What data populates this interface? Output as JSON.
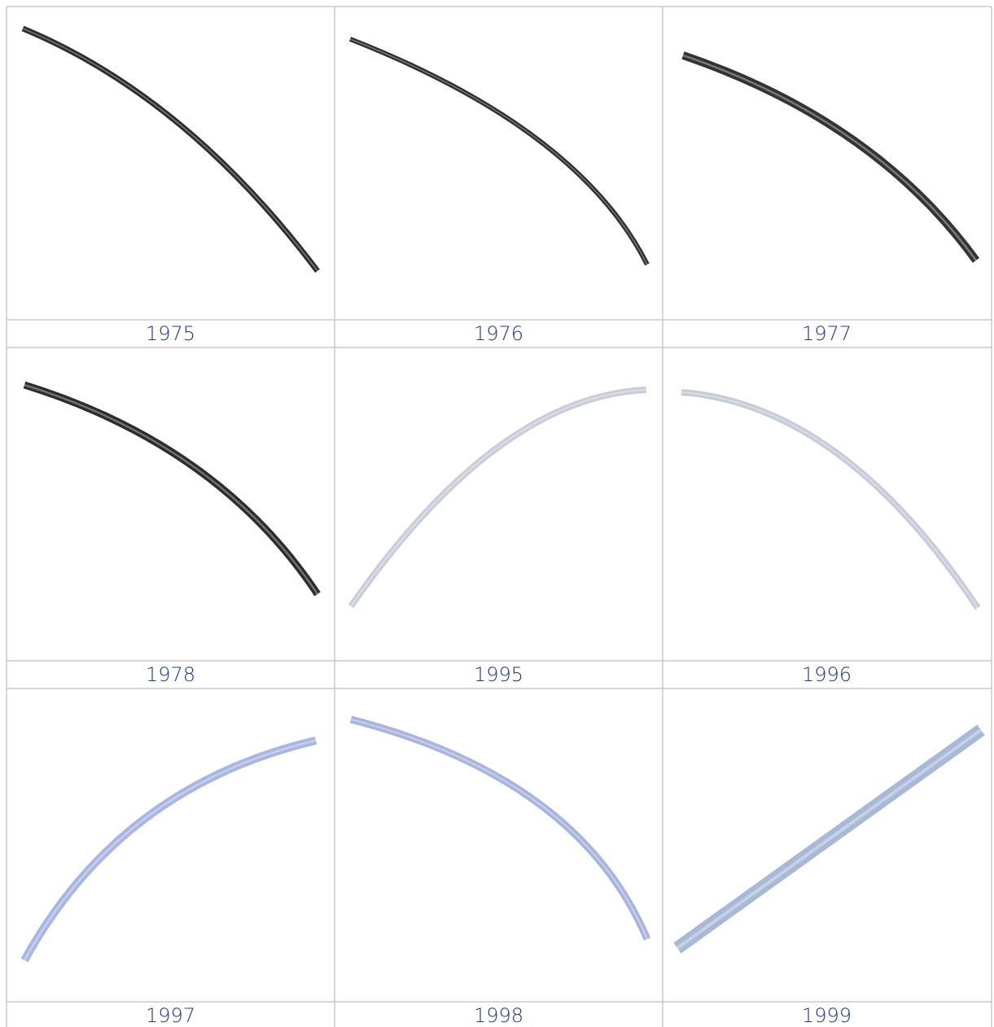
{
  "grid": {
    "cells": [
      {
        "label": "1975"
      },
      {
        "label": "1976"
      },
      {
        "label": "1977"
      },
      {
        "label": "1978"
      },
      {
        "label": "1995"
      },
      {
        "label": "1996"
      },
      {
        "label": "1997"
      },
      {
        "label": "1998"
      },
      {
        "label": "1999"
      }
    ]
  }
}
